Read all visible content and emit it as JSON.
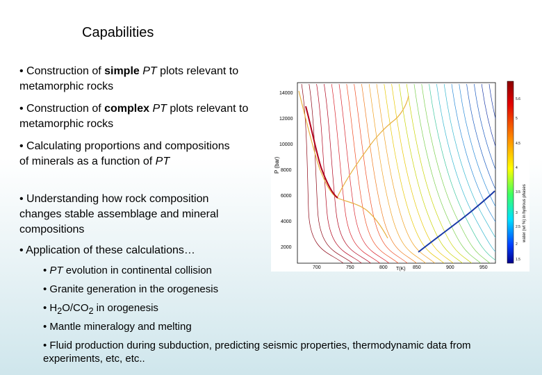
{
  "slide": {
    "title": "Capabilities",
    "bullets": [
      {
        "bullet": "• ",
        "pre": "Construction of ",
        "bold": "simple",
        "space": " ",
        "em": "PT",
        "post": " plots relevant to metamorphic rocks"
      },
      {
        "bullet": "• ",
        "pre": "Construction of ",
        "bold": "complex",
        "space": " ",
        "em": "PT",
        "post": " plots relevant to metamorphic rocks"
      },
      {
        "bullet": "• ",
        "pre": "Calculating proportions and compositions of minerals as a function of ",
        "em": "PT"
      },
      {
        "bullet": "• ",
        "text": "Understanding how rock composition changes stable assemblage and mineral compositions"
      },
      {
        "bullet": "• ",
        "text": "Application of these calculations…"
      }
    ],
    "sub_bullets": [
      {
        "bullet": "• ",
        "em": "PT",
        "post": " evolution in continental collision"
      },
      {
        "bullet": "• ",
        "text": "Granite generation in the orogenesis"
      },
      {
        "bullet": "• ",
        "pre": "H",
        "sub1": "2",
        "mid": "O/CO",
        "sub2": "2",
        "post": " in orogenesis"
      },
      {
        "bullet": "• ",
        "text": "Mantle mineralogy and melting"
      },
      {
        "bullet": "• ",
        "text": "Fluid production during subduction, predicting seismic properties, thermodynamic data from experiments, etc, etc.."
      }
    ]
  },
  "figure": {
    "ylabel": "P (bar)",
    "xlabel": "T(K)",
    "y_ticks": [
      "14000",
      "12000",
      "10000",
      "8000",
      "6000",
      "4000",
      "2000"
    ],
    "x_ticks": [
      "700",
      "750",
      "800",
      "850",
      "900",
      "950"
    ],
    "colorbar_label": "water (wt %) in hydrous phases",
    "colorbar_ticks": [
      "5.6",
      "5",
      "4.5",
      "4",
      "3.5",
      "3",
      "2.5",
      "2",
      "1.5"
    ],
    "colors": {
      "hot": "#b0001a",
      "warm": "#f08a1c",
      "mid": "#c8d400",
      "cool": "#36b8d0",
      "cold": "#1a3aa8"
    }
  }
}
